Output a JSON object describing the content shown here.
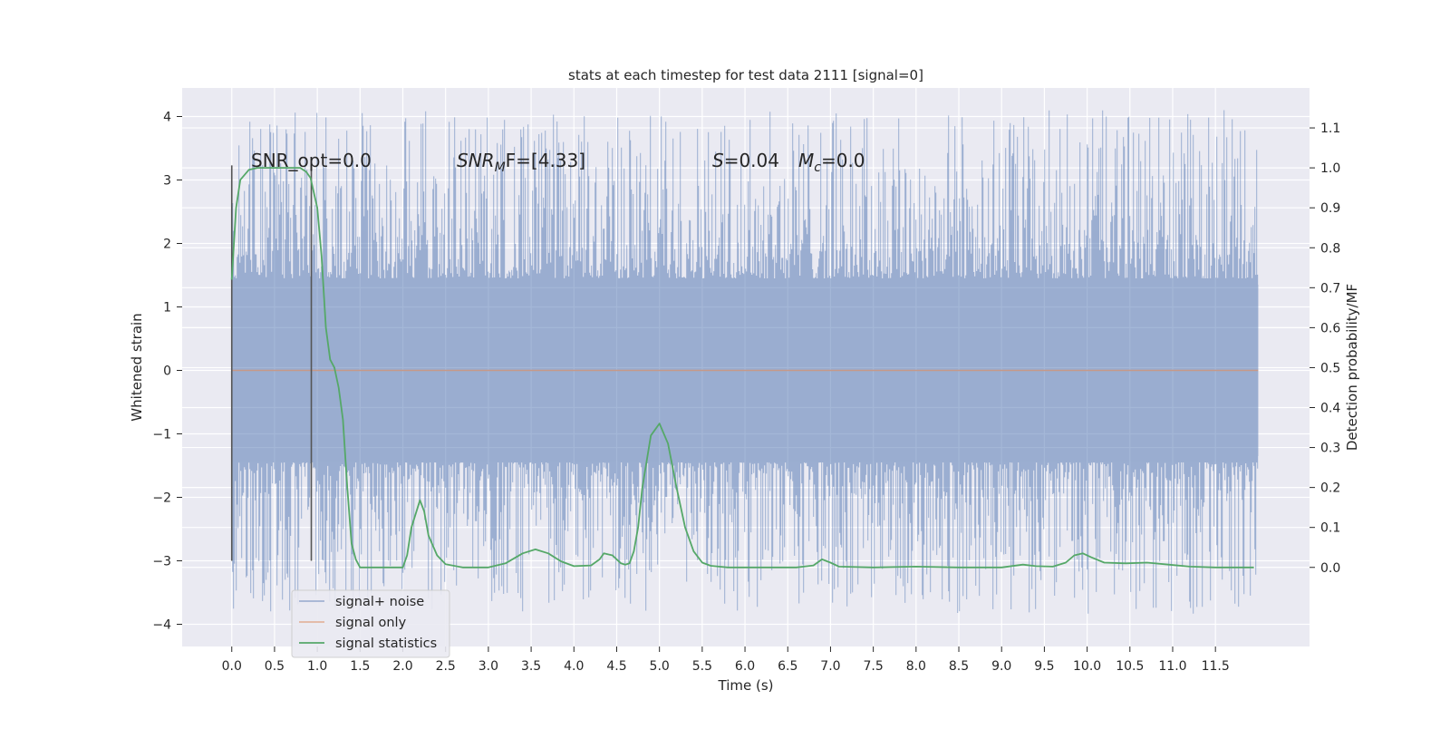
{
  "chart_data": {
    "type": "line",
    "title": "stats at each timestep for test data 2111 [signal=0]",
    "xlabel": "Time (s)",
    "ylabel_left": "Whitened strain",
    "ylabel_right": "Detection probability/MF",
    "xlim": [
      -0.58,
      12.6
    ],
    "ylim_left": [
      -4.35,
      4.45
    ],
    "ylim_right": [
      -0.198,
      1.2
    ],
    "x_ticks": [
      0.0,
      0.5,
      1.0,
      1.5,
      2.0,
      2.5,
      3.0,
      3.5,
      4.0,
      4.5,
      5.0,
      5.5,
      6.0,
      6.5,
      7.0,
      7.5,
      8.0,
      8.5,
      9.0,
      9.5,
      10.0,
      10.5,
      11.0,
      11.5
    ],
    "x_tick_labels": [
      "0.0",
      "0.5",
      "1.0",
      "1.5",
      "2.0",
      "2.5",
      "3.0",
      "3.5",
      "4.0",
      "4.5",
      "5.0",
      "5.5",
      "6.0",
      "6.5",
      "7.0",
      "7.5",
      "8.0",
      "8.5",
      "9.0",
      "9.5",
      "10.0",
      "10.5",
      "11.0",
      "11.5"
    ],
    "y_left_ticks": [
      4,
      3,
      2,
      1,
      0,
      -1,
      -2,
      -3,
      -4
    ],
    "y_left_tick_labels": [
      "4",
      "3",
      "2",
      "1",
      "0",
      "−1",
      "−2",
      "−3",
      "−4"
    ],
    "y_right_ticks": [
      1.1,
      1.0,
      0.9,
      0.8,
      0.7,
      0.6,
      0.5,
      0.4,
      0.3,
      0.2,
      0.1,
      0.0
    ],
    "y_right_tick_labels": [
      "1.1",
      "1.0",
      "0.9",
      "0.8",
      "0.7",
      "0.6",
      "0.5",
      "0.4",
      "0.3",
      "0.2",
      "0.1",
      "0.0"
    ],
    "grid": true,
    "legend_position": "lower-left",
    "series": [
      {
        "name": "signal+ noise",
        "axis": "left",
        "color": "#4c72b0",
        "x_range": [
          0.0,
          12.0
        ],
        "envelope_upper_core": 1.35,
        "envelope_lower_core": -1.35,
        "peak_max": 4.1,
        "peak_min": -3.85
      },
      {
        "name": "signal only",
        "axis": "left",
        "color": "#dd8452",
        "x": [
          0.0,
          12.0
        ],
        "y": [
          0.0,
          0.0
        ]
      },
      {
        "name": "signal statistics",
        "axis": "right",
        "color": "#55a868",
        "x": [
          0.0,
          0.05,
          0.1,
          0.2,
          0.3,
          0.5,
          0.7,
          0.8,
          0.87,
          0.92,
          1.0,
          1.05,
          1.1,
          1.15,
          1.2,
          1.25,
          1.3,
          1.35,
          1.4,
          1.45,
          1.5,
          1.6,
          1.8,
          2.0,
          2.05,
          2.1,
          2.2,
          2.25,
          2.3,
          2.4,
          2.5,
          2.7,
          3.0,
          3.2,
          3.4,
          3.55,
          3.7,
          3.85,
          4.0,
          4.2,
          4.3,
          4.35,
          4.45,
          4.55,
          4.6,
          4.65,
          4.7,
          4.75,
          4.8,
          4.9,
          5.0,
          5.1,
          5.2,
          5.3,
          5.4,
          5.5,
          5.6,
          5.8,
          6.2,
          6.6,
          6.8,
          6.9,
          7.0,
          7.1,
          7.5,
          8.0,
          8.5,
          9.0,
          9.25,
          9.4,
          9.6,
          9.75,
          9.85,
          9.95,
          10.05,
          10.2,
          10.45,
          10.7,
          10.95,
          11.2,
          11.5,
          11.95
        ],
        "y": [
          0.72,
          0.9,
          0.97,
          0.995,
          1.0,
          1.0,
          1.0,
          1.0,
          0.99,
          0.975,
          0.9,
          0.78,
          0.6,
          0.52,
          0.5,
          0.45,
          0.37,
          0.2,
          0.06,
          0.02,
          0.0,
          0.0,
          0.0,
          0.0,
          0.03,
          0.1,
          0.168,
          0.14,
          0.08,
          0.03,
          0.008,
          0.0,
          0.0,
          0.01,
          0.035,
          0.045,
          0.035,
          0.015,
          0.003,
          0.005,
          0.02,
          0.035,
          0.03,
          0.01,
          0.007,
          0.01,
          0.04,
          0.1,
          0.2,
          0.33,
          0.36,
          0.31,
          0.2,
          0.1,
          0.04,
          0.012,
          0.004,
          0.0,
          0.0,
          0.0,
          0.005,
          0.02,
          0.012,
          0.002,
          0.0,
          0.002,
          0.0,
          0.0,
          0.007,
          0.003,
          0.002,
          0.012,
          0.03,
          0.035,
          0.025,
          0.012,
          0.01,
          0.012,
          0.007,
          0.002,
          0.0,
          0.0
        ]
      }
    ],
    "vertical_lines": [
      {
        "x": 0.0,
        "y_range": [
          -3.0,
          3.23
        ],
        "color": "#555555"
      },
      {
        "x": 0.93,
        "y_range": [
          -3.0,
          3.23
        ],
        "color": "#555555"
      }
    ],
    "annotations": {
      "snr_opt": "SNR_opt=0.0",
      "snr_mf_base": "SNR",
      "snr_mf_sub": "M",
      "snr_mf_rest": "F=[4.33]",
      "s_var": "S",
      "s_value": "=0.04",
      "mc_base": "M",
      "mc_sub": "c",
      "mc_value": "=0.0"
    }
  }
}
